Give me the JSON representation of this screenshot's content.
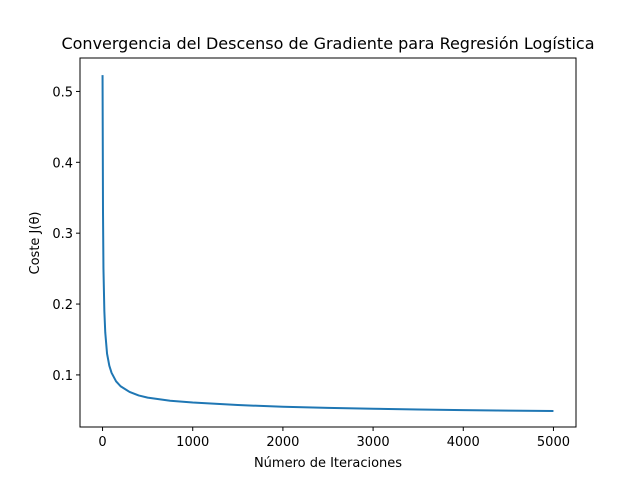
{
  "chart_data": {
    "type": "line",
    "title": "Convergencia del Descenso de Gradiente para Regresión Logística",
    "xlabel": "Número de Iteraciones",
    "ylabel": "Coste J(θ)",
    "xlim": [
      -250,
      5250
    ],
    "ylim": [
      0.0265,
      0.5472
    ],
    "x_ticks": [
      0,
      1000,
      2000,
      3000,
      4000,
      5000
    ],
    "x_tick_labels": [
      "0",
      "1000",
      "2000",
      "3000",
      "4000",
      "5000"
    ],
    "y_ticks": [
      0.1,
      0.2,
      0.3,
      0.4,
      0.5
    ],
    "y_tick_labels": [
      "0.1",
      "0.2",
      "0.3",
      "0.4",
      "0.5"
    ],
    "grid": false,
    "line_color": "#1f77b4",
    "series": [
      {
        "x": [
          0,
          5,
          10,
          20,
          30,
          50,
          75,
          100,
          150,
          200,
          300,
          400,
          500,
          750,
          1000,
          1500,
          2000,
          2500,
          3000,
          3500,
          4000,
          4500,
          5000
        ],
        "values": [
          0.523,
          0.33,
          0.25,
          0.19,
          0.16,
          0.13,
          0.113,
          0.103,
          0.091,
          0.084,
          0.076,
          0.071,
          0.068,
          0.0635,
          0.061,
          0.0575,
          0.055,
          0.0535,
          0.0522,
          0.0512,
          0.0503,
          0.0496,
          0.049
        ]
      }
    ]
  }
}
